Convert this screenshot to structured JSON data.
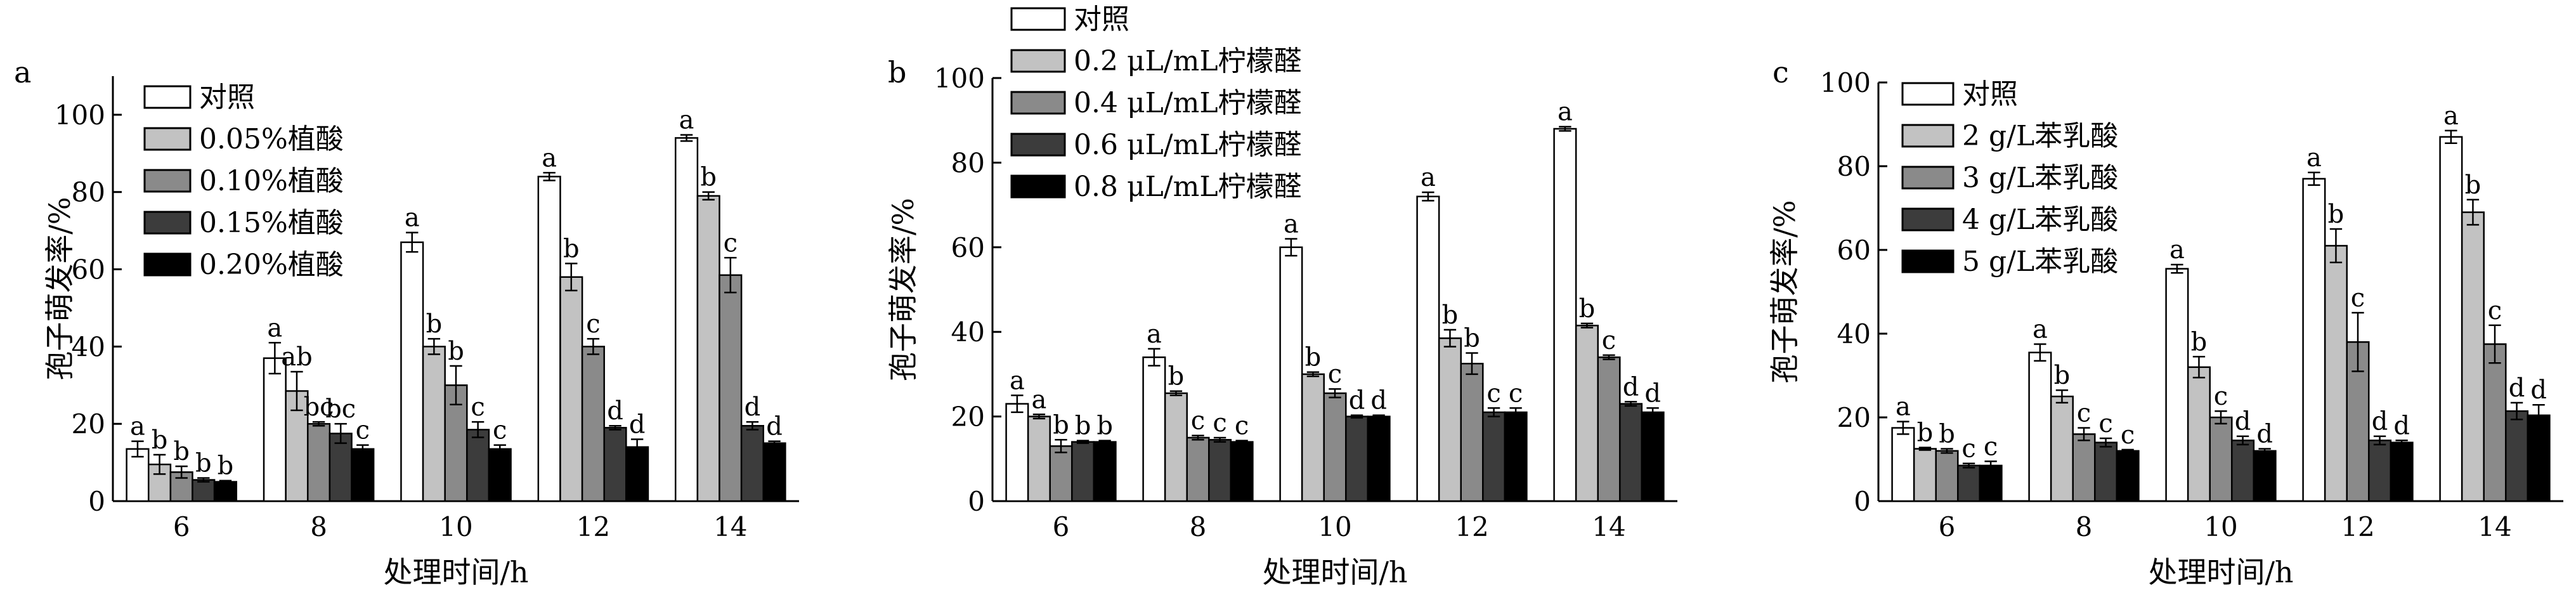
{
  "colors": {
    "series": [
      "#ffffff",
      "#c2c2c2",
      "#8a8a8a",
      "#3c3c3c",
      "#000000"
    ],
    "stroke": "#000000"
  },
  "chart_data": [
    {
      "panel": "a",
      "type": "bar",
      "ylabel": "孢子萌发率/%",
      "xlabel": "处理时间/h",
      "ylim": [
        0,
        110
      ],
      "yticks": [
        0,
        20,
        40,
        60,
        80,
        100
      ],
      "categories": [
        "6",
        "8",
        "10",
        "12",
        "14"
      ],
      "legend_position": "top-left",
      "series": [
        {
          "name": "对照",
          "values": [
            13.5,
            37,
            67,
            84,
            94
          ],
          "errors": [
            2,
            4,
            2.5,
            1,
            0.8
          ],
          "letters": [
            "a",
            "a",
            "a",
            "a",
            "a"
          ]
        },
        {
          "name": "0.05%植酸",
          "values": [
            9.5,
            28.5,
            40,
            58,
            79
          ],
          "errors": [
            2.5,
            5,
            2,
            3.5,
            1
          ],
          "letters": [
            "b",
            "ab",
            "b",
            "b",
            "b"
          ]
        },
        {
          "name": "0.10%植酸",
          "values": [
            7.5,
            20,
            30,
            40,
            58.5
          ],
          "errors": [
            1.5,
            0.5,
            5,
            2,
            4.5
          ],
          "letters": [
            "b",
            "bc",
            "b",
            "c",
            "c"
          ]
        },
        {
          "name": "0.15%植酸",
          "values": [
            5.5,
            17.5,
            18.5,
            19,
            19.5
          ],
          "errors": [
            0.5,
            2.5,
            2,
            0.5,
            1
          ],
          "letters": [
            "b",
            "bc",
            "c",
            "d",
            "d"
          ]
        },
        {
          "name": "0.20%植酸",
          "values": [
            5,
            13.5,
            13.5,
            14,
            15
          ],
          "errors": [
            0.3,
            1,
            1,
            2,
            0.5
          ],
          "letters": [
            "b",
            "c",
            "c",
            "d",
            "d"
          ]
        }
      ]
    },
    {
      "panel": "b",
      "type": "bar",
      "ylabel": "孢子萌发率/%",
      "xlabel": "处理时间/h",
      "ylim": [
        0,
        100
      ],
      "yticks": [
        0,
        20,
        40,
        60,
        80,
        100
      ],
      "categories": [
        "6",
        "8",
        "10",
        "12",
        "14"
      ],
      "legend_position": "top-left",
      "series": [
        {
          "name": "对照",
          "values": [
            23,
            34,
            60,
            72,
            88
          ],
          "errors": [
            2,
            2,
            2,
            1,
            0.5
          ],
          "letters": [
            "a",
            "a",
            "a",
            "a",
            "a"
          ]
        },
        {
          "name": "0.2 μL/mL柠檬醛",
          "values": [
            20,
            25.5,
            30,
            38.5,
            41.5
          ],
          "errors": [
            0.5,
            0.5,
            0.5,
            2,
            0.5
          ],
          "letters": [
            "a",
            "b",
            "b",
            "b",
            "b"
          ]
        },
        {
          "name": "0.4 μL/mL柠檬醛",
          "values": [
            13,
            15,
            25.5,
            32.5,
            34
          ],
          "errors": [
            1.5,
            0.5,
            1,
            2.5,
            0.5
          ],
          "letters": [
            "b",
            "c",
            "c",
            "b",
            "c"
          ]
        },
        {
          "name": "0.6 μL/mL柠檬醛",
          "values": [
            14,
            14.5,
            20,
            21,
            23
          ],
          "errors": [
            0.3,
            0.5,
            0.3,
            1,
            0.5
          ],
          "letters": [
            "b",
            "c",
            "d",
            "c",
            "d"
          ]
        },
        {
          "name": "0.8 μL/mL柠檬醛",
          "values": [
            14,
            14,
            20,
            21,
            21
          ],
          "errors": [
            0.3,
            0.3,
            0.3,
            1,
            1
          ],
          "letters": [
            "b",
            "c",
            "d",
            "c",
            "d"
          ]
        }
      ]
    },
    {
      "panel": "c",
      "type": "bar",
      "ylabel": "孢子萌发率/%",
      "xlabel": "处理时间/h",
      "ylim": [
        0,
        100
      ],
      "yticks": [
        0,
        20,
        40,
        60,
        80,
        100
      ],
      "categories": [
        "6",
        "8",
        "10",
        "12",
        "14"
      ],
      "legend_position": "top-left",
      "series": [
        {
          "name": "对照",
          "values": [
            17.5,
            35.5,
            55.5,
            77,
            87
          ],
          "errors": [
            1.5,
            2,
            1,
            1.5,
            1.5
          ],
          "letters": [
            "a",
            "a",
            "a",
            "a",
            "a"
          ]
        },
        {
          "name": "2 g/L苯乳酸",
          "values": [
            12.5,
            25,
            32,
            61,
            69
          ],
          "errors": [
            0.3,
            1.5,
            2.5,
            4,
            3
          ],
          "letters": [
            "b",
            "b",
            "b",
            "b",
            "b"
          ]
        },
        {
          "name": "3 g/L苯乳酸",
          "values": [
            12,
            16,
            20,
            38,
            37.5
          ],
          "errors": [
            0.5,
            1.5,
            1.5,
            7,
            4.5
          ],
          "letters": [
            "b",
            "c",
            "c",
            "c",
            "c"
          ]
        },
        {
          "name": "4 g/L苯乳酸",
          "values": [
            8.5,
            14,
            14.5,
            14.5,
            21.5
          ],
          "errors": [
            0.5,
            1,
            1,
            1,
            2
          ],
          "letters": [
            "c",
            "c",
            "d",
            "d",
            "d"
          ]
        },
        {
          "name": "5 g/L苯乳酸",
          "values": [
            8.5,
            12,
            12,
            14,
            20.5
          ],
          "errors": [
            1,
            0.3,
            0.5,
            0.5,
            2.5
          ],
          "letters": [
            "c",
            "c",
            "d",
            "d",
            "d"
          ]
        }
      ]
    }
  ]
}
